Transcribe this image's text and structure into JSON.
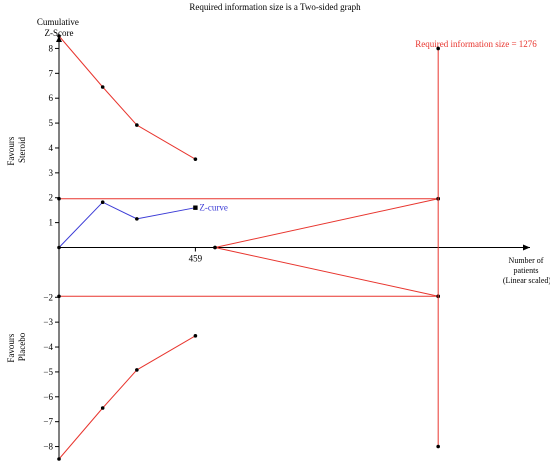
{
  "chart_data": {
    "type": "line",
    "title": "Required information size is a Two-sided graph",
    "ylabel": "Cumulative Z-Score",
    "ylabel_lines": [
      "Cumulative",
      "Z-Score"
    ],
    "xlabel": "Number of patients (Linear scaled)",
    "xlabel_lines": [
      "Number of",
      "patients",
      "(Linear scaled)"
    ],
    "xlim": [
      0,
      1585
    ],
    "ylim": [
      -8.5,
      8.5
    ],
    "y_ticks": [
      8,
      7,
      6,
      5,
      4,
      3,
      2,
      1,
      -2,
      -3,
      -4,
      -5,
      -6,
      -7,
      -8
    ],
    "x_tick_labels": [
      {
        "x": 459,
        "label": "459"
      }
    ],
    "favours_upper": [
      "Favours",
      "Steroid"
    ],
    "favours_lower": [
      "Favours",
      "Placebo"
    ],
    "required_information_size": {
      "x": 1276,
      "label": "Required information size = 1276"
    },
    "colors": {
      "boundary": "#e8352e",
      "zcurve": "#3b3bd6",
      "axis": "#000000"
    },
    "series": [
      {
        "name": "Z-curve",
        "role": "z-curve",
        "x": [
          0,
          147,
          262,
          459
        ],
        "y": [
          0,
          1.82,
          1.15,
          1.6
        ]
      },
      {
        "role": "upper-monitoring-boundary",
        "x": [
          0,
          147,
          262,
          459
        ],
        "y": [
          8.5,
          6.45,
          4.92,
          3.55
        ]
      },
      {
        "role": "lower-monitoring-boundary",
        "x": [
          0,
          147,
          262,
          459
        ],
        "y": [
          -8.5,
          -6.45,
          -4.92,
          -3.55
        ]
      },
      {
        "role": "upper-conventional-boundary",
        "x": [
          0,
          1276
        ],
        "y": [
          1.96,
          1.96
        ]
      },
      {
        "role": "lower-conventional-boundary",
        "x": [
          0,
          1276
        ],
        "y": [
          -1.96,
          -1.96
        ]
      },
      {
        "role": "upper-futility-boundary",
        "x": [
          525,
          1276
        ],
        "y": [
          0,
          1.96
        ]
      },
      {
        "role": "lower-futility-boundary",
        "x": [
          525,
          1276
        ],
        "y": [
          0,
          -1.96
        ]
      },
      {
        "role": "required-information-size-line",
        "x": [
          1276,
          1276
        ],
        "y": [
          8,
          -8
        ]
      }
    ]
  }
}
